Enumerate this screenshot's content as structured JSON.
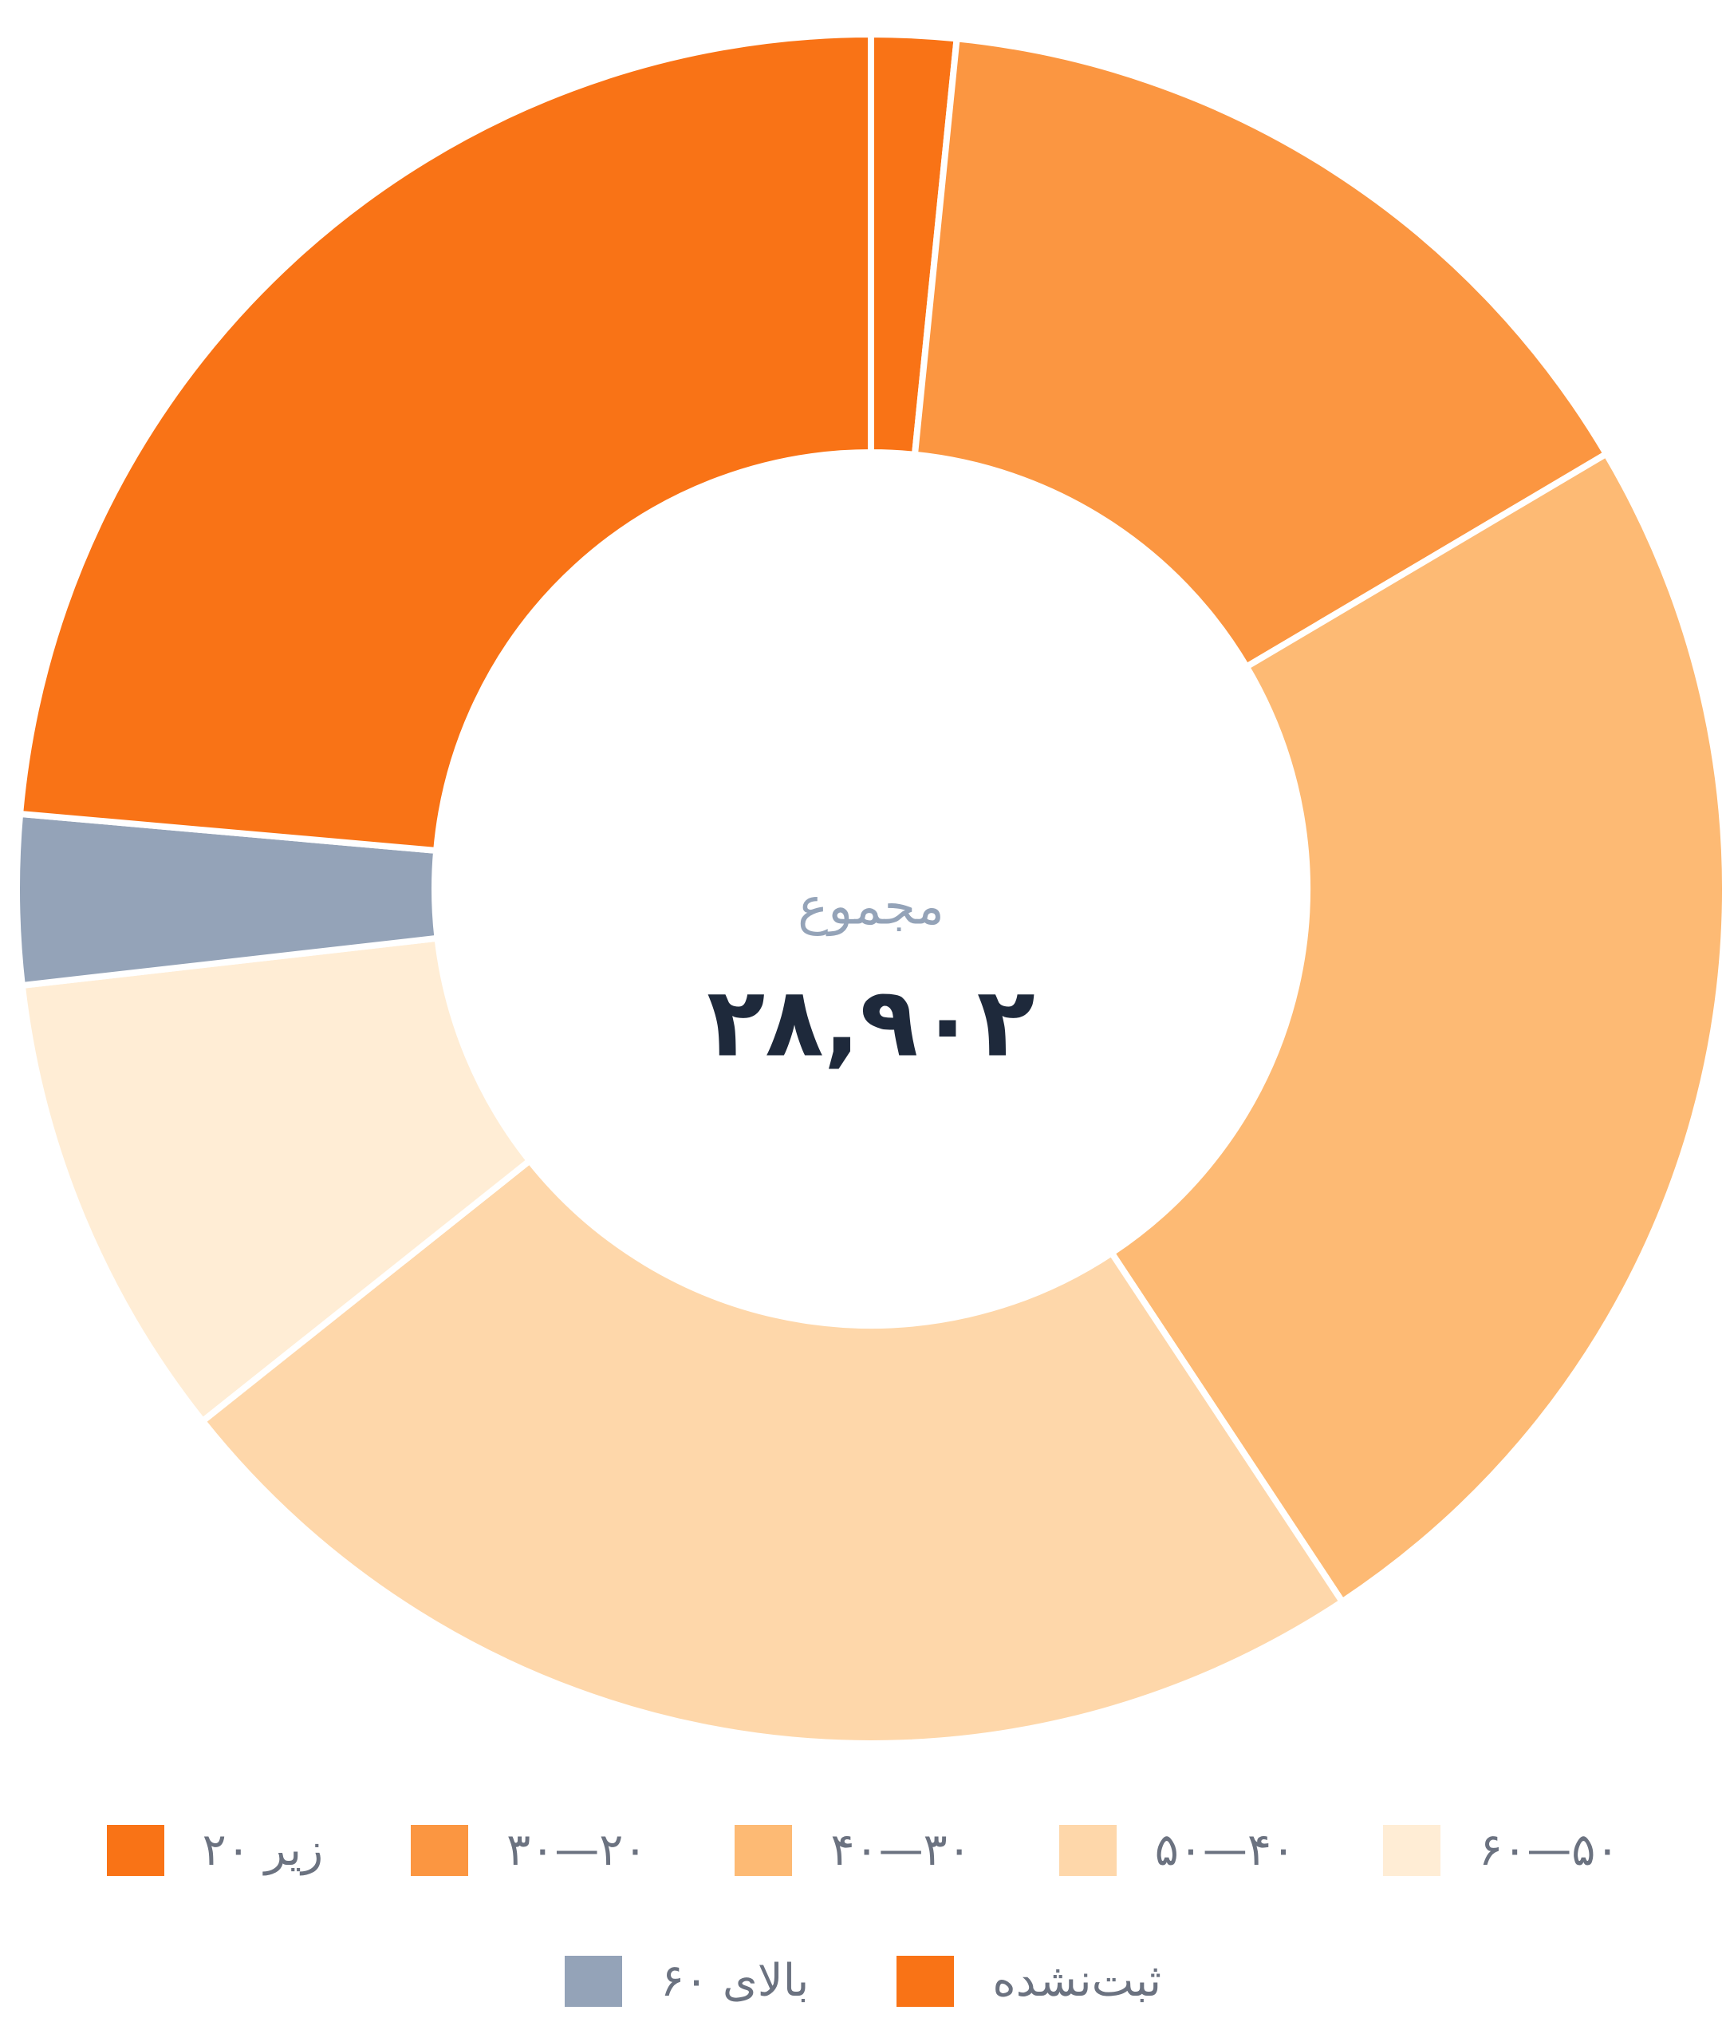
{
  "chart_data": {
    "type": "donut",
    "categories": [
      "زیر ۲۰",
      "۲۰—۳۰",
      "۳۰—۴۰",
      "۴۰—۵۰",
      "۵۰—۶۰",
      "بالای ۶۰",
      "ثبت‌نشده"
    ],
    "values": [
      6821,
      4306,
      6994,
      6821,
      2572,
      925,
      463
    ],
    "colors": [
      "#f97316",
      "#fb9641",
      "#fdba74",
      "#fed7aa",
      "#ffedd5",
      "#94a3b8",
      "#f97316"
    ],
    "center_label": "مجموع",
    "total": 28902,
    "total_label": "۲۸,۹۰۲"
  }
}
